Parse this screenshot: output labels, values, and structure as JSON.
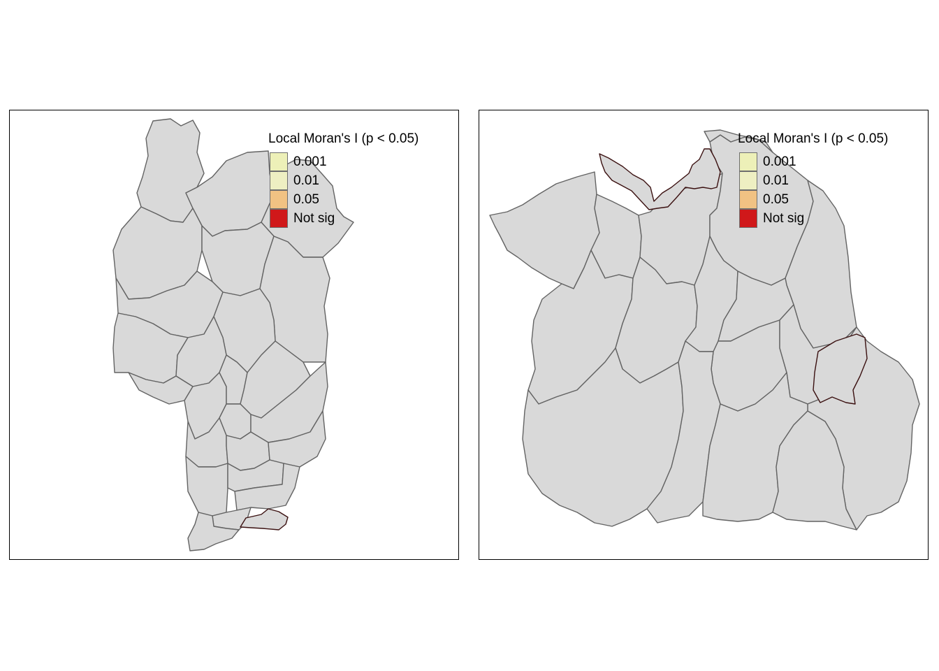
{
  "maps": [
    {
      "legend": {
        "title": "Local Moran's I (p < 0.05)",
        "items": [
          {
            "label": "0.001",
            "color": "#edf0b8"
          },
          {
            "label": "0.01",
            "color": "#eeefc2"
          },
          {
            "label": "0.05",
            "color": "#f1c283"
          },
          {
            "label": "Not sig",
            "color": "#d0181a"
          }
        ]
      },
      "fill_default": "#d9d9d9",
      "fill_highlight": "#d0181a"
    },
    {
      "legend": {
        "title": "Local Moran's I (p < 0.05)",
        "items": [
          {
            "label": "0.001",
            "color": "#edf0b8"
          },
          {
            "label": "0.01",
            "color": "#eeefc2"
          },
          {
            "label": "0.05",
            "color": "#f1c283"
          },
          {
            "label": "Not sig",
            "color": "#d0181a"
          }
        ]
      },
      "fill_default": "#d9d9d9",
      "fill_highlight": "#d0181a"
    }
  ]
}
